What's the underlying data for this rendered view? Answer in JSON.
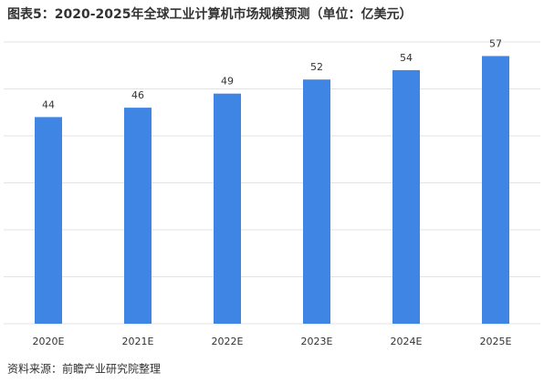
{
  "chart_data": {
    "type": "bar",
    "title": "图表5：2020-2025年全球工业计算机市场规模预测（单位：亿美元）",
    "source": "资料来源：前瞻产业研究院整理",
    "categories": [
      "2020E",
      "2021E",
      "2022E",
      "2023E",
      "2024E",
      "2025E"
    ],
    "values": [
      44,
      46,
      49,
      52,
      54,
      57
    ],
    "color": "#3f86e4",
    "ylim": [
      0,
      60
    ],
    "yticks": [
      0,
      10,
      20,
      30,
      40,
      50,
      60
    ],
    "grid": true
  }
}
